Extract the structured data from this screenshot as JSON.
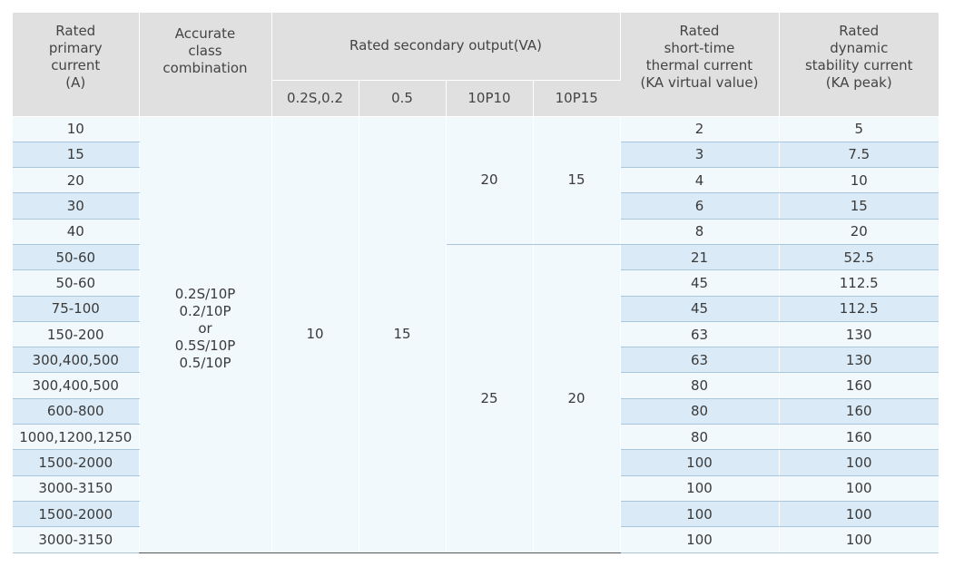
{
  "headers": {
    "primary_current": "Rated\nprimary\ncurrent\n(A)",
    "accurate_class": "Accurate\nclass\ncombination",
    "secondary_output": "Rated secondary output(VA)",
    "sub_02s": "0.2S,0.2",
    "sub_05": "0.5",
    "sub_10p10": "10P10",
    "sub_10p15": "10P15",
    "thermal_current": "Rated\nshort-time\nthermal current\n(KA virtual value)",
    "dynamic_current": "Rated\ndynamic\nstability current\n(KA peak)"
  },
  "spans": {
    "accurate_class_value": "0.2S/10P\n0.2/10P\nor\n0.5S/10P\n0.5/10P",
    "output_02s": "10",
    "output_05": "15",
    "group1_10p10": "20",
    "group1_10p15": "15",
    "group2_10p10": "25",
    "group2_10p15": "20"
  },
  "rows": [
    {
      "primary": "10",
      "thermal": "2",
      "dynamic": "5"
    },
    {
      "primary": "15",
      "thermal": "3",
      "dynamic": "7.5"
    },
    {
      "primary": "20",
      "thermal": "4",
      "dynamic": "10"
    },
    {
      "primary": "30",
      "thermal": "6",
      "dynamic": "15"
    },
    {
      "primary": "40",
      "thermal": "8",
      "dynamic": "20"
    },
    {
      "primary": "50-60",
      "thermal": "21",
      "dynamic": "52.5"
    },
    {
      "primary": "50-60",
      "thermal": "45",
      "dynamic": "112.5"
    },
    {
      "primary": "75-100",
      "thermal": "45",
      "dynamic": "112.5"
    },
    {
      "primary": "150-200",
      "thermal": "63",
      "dynamic": "130"
    },
    {
      "primary": "300,400,500",
      "thermal": "63",
      "dynamic": "130"
    },
    {
      "primary": "300,400,500",
      "thermal": "80",
      "dynamic": "160"
    },
    {
      "primary": "600-800",
      "thermal": "80",
      "dynamic": "160"
    },
    {
      "primary": "1000,1200,1250",
      "thermal": "80",
      "dynamic": "160"
    },
    {
      "primary": "1500-2000",
      "thermal": "100",
      "dynamic": "100"
    },
    {
      "primary": "3000-3150",
      "thermal": "100",
      "dynamic": "100"
    },
    {
      "primary": "1500-2000",
      "thermal": "100",
      "dynamic": "100"
    },
    {
      "primary": "3000-3150",
      "thermal": "100",
      "dynamic": "100"
    }
  ]
}
